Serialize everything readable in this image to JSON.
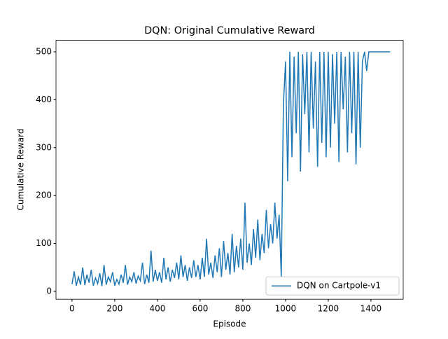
{
  "chart_data": {
    "type": "line",
    "title": "DQN: Original Cumulative Reward",
    "x_label": "Episode",
    "y_label": "Cumulative Reward",
    "x": [
      0,
      10,
      20,
      30,
      40,
      50,
      60,
      70,
      80,
      90,
      100,
      110,
      120,
      130,
      140,
      150,
      160,
      170,
      180,
      190,
      200,
      210,
      220,
      230,
      240,
      250,
      260,
      270,
      280,
      290,
      300,
      310,
      320,
      330,
      340,
      350,
      360,
      370,
      380,
      390,
      400,
      410,
      420,
      430,
      440,
      450,
      460,
      470,
      480,
      490,
      500,
      510,
      520,
      530,
      540,
      550,
      560,
      570,
      580,
      590,
      600,
      610,
      620,
      630,
      640,
      650,
      660,
      670,
      680,
      690,
      700,
      710,
      720,
      730,
      740,
      750,
      760,
      770,
      780,
      790,
      800,
      810,
      820,
      830,
      840,
      850,
      860,
      870,
      880,
      890,
      900,
      910,
      920,
      930,
      940,
      950,
      960,
      970,
      980,
      990,
      1000,
      1010,
      1020,
      1030,
      1040,
      1050,
      1060,
      1070,
      1080,
      1090,
      1100,
      1110,
      1120,
      1130,
      1140,
      1150,
      1160,
      1170,
      1180,
      1190,
      1200,
      1210,
      1220,
      1230,
      1240,
      1250,
      1260,
      1270,
      1280,
      1290,
      1300,
      1310,
      1320,
      1330,
      1340,
      1350,
      1360,
      1370,
      1380,
      1390,
      1400,
      1410,
      1420,
      1430,
      1440,
      1450,
      1460,
      1470,
      1480,
      1490
    ],
    "series": [
      {
        "name": "DQN on Cartpole-v1",
        "color": "#1f77b4",
        "values": [
          15,
          42,
          12,
          30,
          14,
          50,
          13,
          35,
          18,
          45,
          12,
          28,
          16,
          38,
          11,
          55,
          14,
          30,
          20,
          40,
          12,
          25,
          15,
          35,
          18,
          55,
          14,
          30,
          20,
          40,
          16,
          32,
          22,
          60,
          15,
          35,
          18,
          85,
          20,
          45,
          22,
          40,
          18,
          70,
          25,
          50,
          20,
          45,
          28,
          60,
          25,
          75,
          30,
          55,
          22,
          50,
          28,
          65,
          30,
          55,
          25,
          70,
          30,
          110,
          35,
          60,
          28,
          75,
          40,
          90,
          30,
          105,
          45,
          80,
          35,
          120,
          40,
          95,
          50,
          110,
          45,
          185,
          60,
          100,
          55,
          130,
          70,
          150,
          65,
          120,
          80,
          170,
          90,
          140,
          100,
          185,
          110,
          160,
          30,
          390,
          480,
          230,
          500,
          280,
          490,
          330,
          500,
          250,
          495,
          370,
          500,
          290,
          500,
          340,
          480,
          260,
          500,
          310,
          500,
          280,
          500,
          300,
          495,
          350,
          500,
          270,
          500,
          380,
          490,
          290,
          500,
          330,
          500,
          265,
          500,
          300,
          480,
          500,
          460,
          500,
          500,
          500,
          500,
          500,
          500,
          500,
          500,
          500,
          500,
          500
        ]
      }
    ],
    "xlim": [
      -75,
      1551
    ],
    "ylim": [
      -16.4,
      524
    ],
    "xticks": [
      0,
      200,
      400,
      600,
      800,
      1000,
      1200,
      1400
    ],
    "yticks": [
      0,
      100,
      200,
      300,
      400,
      500
    ],
    "legend": "lower right"
  }
}
